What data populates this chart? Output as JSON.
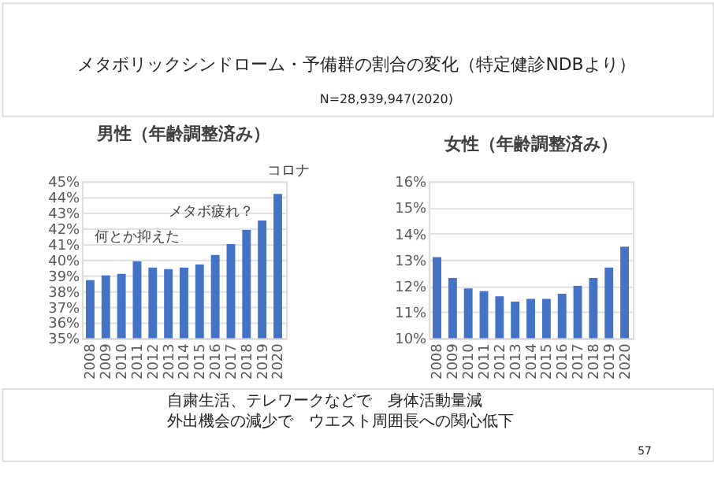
{
  "chart_data": [
    {
      "type": "other",
      "title": "メタボリックシンドローム・予備群の割合の変化（特定健診NDBより）",
      "subtitle": "N=28,939,947(2020)"
    },
    {
      "type": "bar",
      "title": "男性（年齢調整済み）",
      "categories": [
        "2008",
        "2009",
        "2010",
        "2011",
        "2012",
        "2013",
        "2014",
        "2015",
        "2016",
        "2017",
        "2018",
        "2019",
        "2020"
      ],
      "values": [
        38.7,
        39.0,
        39.1,
        39.9,
        39.5,
        39.4,
        39.5,
        39.7,
        40.3,
        41.0,
        41.9,
        42.5,
        44.2
      ],
      "color": "#4472c4",
      "ylim": [
        35,
        45
      ],
      "yticks": [
        {
          "value": 35,
          "label": "35%"
        },
        {
          "value": 36,
          "label": "36%"
        },
        {
          "value": 37,
          "label": "37%"
        },
        {
          "value": 38,
          "label": "38%"
        },
        {
          "value": 39,
          "label": "39%"
        },
        {
          "value": 40,
          "label": "40%"
        },
        {
          "value": 41,
          "label": "41%"
        },
        {
          "value": 42,
          "label": "42%"
        },
        {
          "value": 43,
          "label": "43%"
        },
        {
          "value": 44,
          "label": "44%"
        },
        {
          "value": 45,
          "label": "45%"
        }
      ],
      "grid": "y",
      "annotations": [
        "何とか抑えた",
        "メタボ疲れ？",
        "コロナ"
      ]
    },
    {
      "type": "bar",
      "title": "女性（年齢調整済み）",
      "categories": [
        "2008",
        "2009",
        "2010",
        "2011",
        "2012",
        "2013",
        "2014",
        "2015",
        "2016",
        "2017",
        "2018",
        "2019",
        "2020"
      ],
      "values": [
        13.1,
        12.3,
        11.9,
        11.8,
        11.6,
        11.4,
        11.5,
        11.5,
        11.7,
        12.0,
        12.3,
        12.7,
        13.5
      ],
      "color": "#4472c4",
      "ylim": [
        10,
        16
      ],
      "yticks": [
        {
          "value": 10,
          "label": "10%"
        },
        {
          "value": 11,
          "label": "11%"
        },
        {
          "value": 12,
          "label": "12%"
        },
        {
          "value": 13,
          "label": "13%"
        },
        {
          "value": 14,
          "label": "14%"
        },
        {
          "value": 15,
          "label": "15%"
        },
        {
          "value": 16,
          "label": "16%"
        }
      ],
      "grid": "y"
    },
    {
      "type": "other",
      "annotations": [
        "自粛生活、テレワークなどで　身体活動量減",
        "外出機会の減少で　ウエスト周囲長への関心低下",
        "57"
      ]
    }
  ]
}
